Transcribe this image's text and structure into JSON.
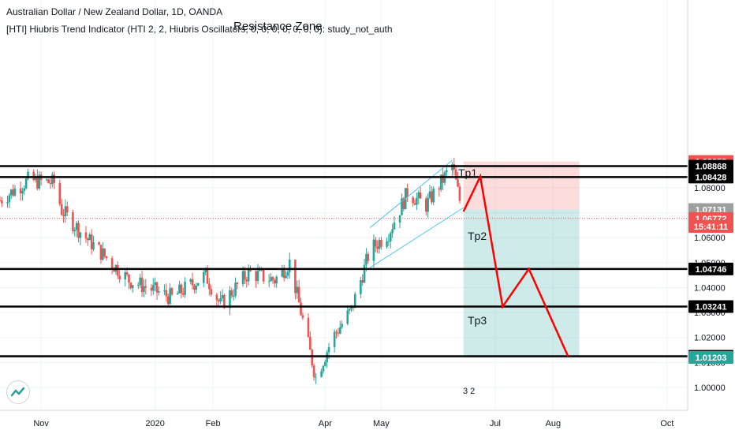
{
  "header": {
    "symbol_line": "Australian Dollar / New Zealand Dollar, 1D, OANDA",
    "indicator_line": "[HTI] Hiubris Trend Indicator (HTI 2, 2, Hiubris Oscillators, 0, 0, 0, 0, 0, 0, 0): study_not_auth"
  },
  "annotations": {
    "resistance_zone": "Resistance Zone",
    "tp1": "Tp1",
    "tp2": "Tp2",
    "tp3": "Tp3",
    "event_markers": "3 2"
  },
  "price_badges": [
    {
      "label": "1.09053",
      "value": 1.09053,
      "color": "#ef5350"
    },
    {
      "label": "1.08868",
      "value": 1.08868,
      "color": "#000000"
    },
    {
      "label": "1.08428",
      "value": 1.08428,
      "color": "#000000"
    },
    {
      "label": "1.07131",
      "value": 1.07131,
      "color": "#9e9e9e"
    },
    {
      "label": "1.06772",
      "value": 1.06772,
      "color": "#ef5350"
    },
    {
      "label": "15:41:11",
      "value": 1.0645,
      "color": "#ef5350"
    },
    {
      "label": "1.04746",
      "value": 1.04746,
      "color": "#000000"
    },
    {
      "label": "1.03241",
      "value": 1.03241,
      "color": "#000000"
    },
    {
      "label": "1.01250",
      "value": 1.0125,
      "color": "#000000"
    },
    {
      "label": "1.01203",
      "value": 1.01203,
      "color": "#26a69a"
    }
  ],
  "chart_data": {
    "type": "candlestick",
    "title": "Australian Dollar / New Zealand Dollar, 1D, OANDA",
    "y_axis": {
      "ticks": [
        1.0,
        1.01,
        1.02,
        1.03,
        1.04,
        1.05,
        1.06,
        1.07,
        1.08
      ],
      "tick_labels": [
        "1.00000",
        "1.01000",
        "1.02000",
        "1.03000",
        "1.04000",
        "1.05000",
        "1.06000",
        "1.07000",
        "1.08000"
      ],
      "range": [
        0.9955,
        1.094
      ]
    },
    "x_axis": {
      "labels": [
        "Nov",
        "2020",
        "Feb",
        "Apr",
        "May",
        "Jul",
        "Aug",
        "Oct"
      ],
      "dates": [
        "2019-11-01",
        "2020-01-01",
        "2020-02-01",
        "2020-04-01",
        "2020-05-01",
        "2020-07-01",
        "2020-08-01",
        "2020-10-01"
      ],
      "range": [
        "2019-10-10",
        "2020-10-12"
      ]
    },
    "series": [
      {
        "type": "candlestick",
        "description_points": [
          {
            "date": "2019-10-10",
            "close": 1.075
          },
          {
            "date": "2019-10-25",
            "close": 1.083
          },
          {
            "date": "2019-11-08",
            "close": 1.082
          },
          {
            "date": "2019-11-12",
            "close": 1.071
          },
          {
            "date": "2019-11-25",
            "close": 1.06
          },
          {
            "date": "2019-12-18",
            "close": 1.043
          },
          {
            "date": "2020-01-10",
            "close": 1.036
          },
          {
            "date": "2020-01-28",
            "close": 1.045
          },
          {
            "date": "2020-02-05",
            "close": 1.033
          },
          {
            "date": "2020-02-20",
            "close": 1.046
          },
          {
            "date": "2020-03-05",
            "close": 1.043
          },
          {
            "date": "2020-03-13",
            "close": 1.05
          },
          {
            "date": "2020-03-20",
            "close": 1.027
          },
          {
            "date": "2020-03-27",
            "close": 1.004
          },
          {
            "date": "2020-04-05",
            "close": 1.02
          },
          {
            "date": "2020-04-15",
            "close": 1.031
          },
          {
            "date": "2020-04-25",
            "close": 1.055
          },
          {
            "date": "2020-05-05",
            "close": 1.062
          },
          {
            "date": "2020-05-15",
            "close": 1.078
          },
          {
            "date": "2020-05-25",
            "close": 1.073
          },
          {
            "date": "2020-06-08",
            "close": 1.089
          },
          {
            "date": "2020-06-14",
            "close": 1.068
          }
        ]
      }
    ],
    "horizontal_levels": [
      1.08868,
      1.08428,
      1.04746,
      1.03241,
      1.0125
    ],
    "position_tool": {
      "entry": 1.07131,
      "stop": 1.09053,
      "target": 1.01203,
      "start": "2020-06-14",
      "end": "2020-08-15"
    },
    "channel": {
      "upper": [
        {
          "date": "2020-04-25",
          "y": 1.064
        },
        {
          "date": "2020-06-08",
          "y": 1.091
        }
      ],
      "lower": [
        {
          "date": "2020-04-25",
          "y": 1.048
        },
        {
          "date": "2020-06-14",
          "y": 1.072
        }
      ]
    },
    "projection_path": [
      {
        "date": "2020-06-14",
        "y": 1.0705
      },
      {
        "date": "2020-06-23",
        "y": 1.0845
      },
      {
        "date": "2020-07-05",
        "y": 1.0324
      },
      {
        "date": "2020-07-19",
        "y": 1.0475
      },
      {
        "date": "2020-08-09",
        "y": 1.0125
      }
    ],
    "current_price": 1.06772
  }
}
